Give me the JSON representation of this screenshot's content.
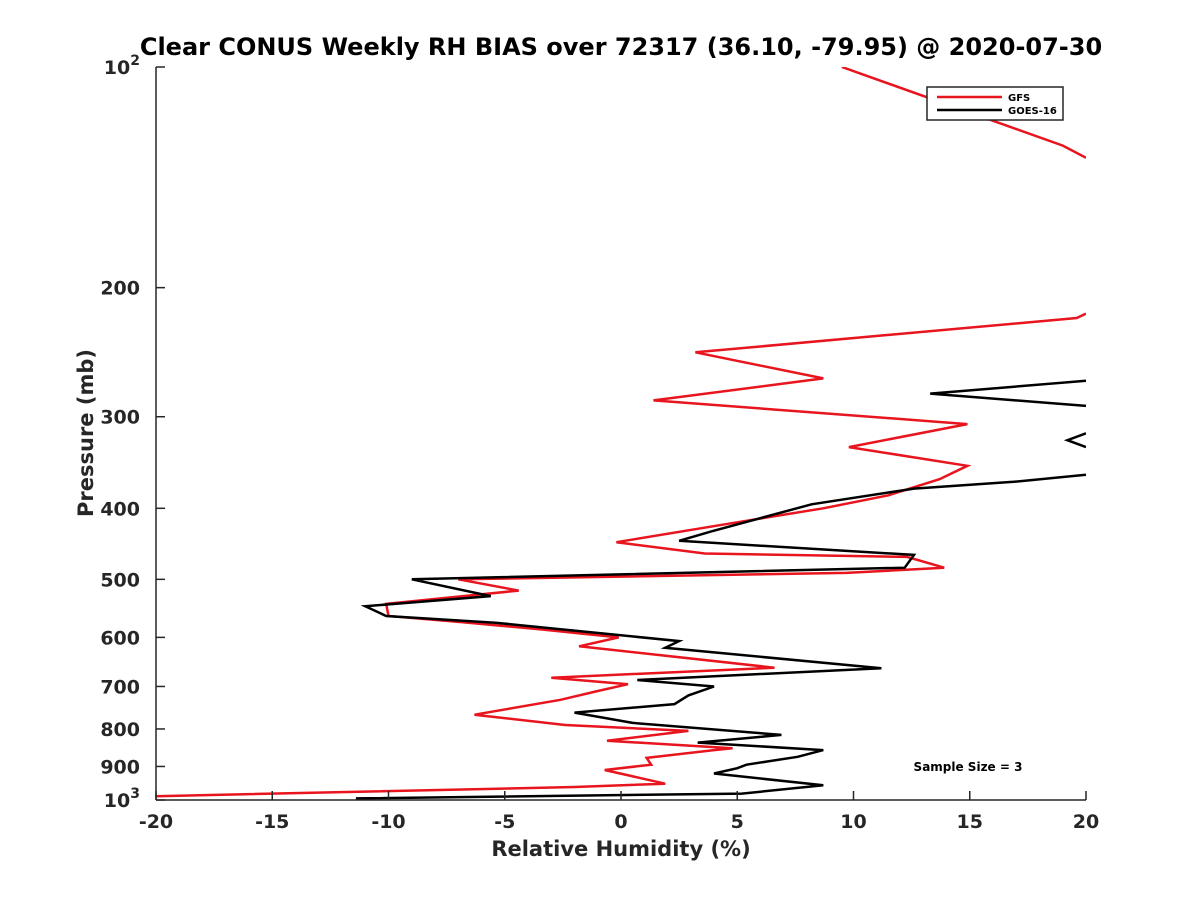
{
  "chart_data": {
    "type": "line",
    "title": "Clear CONUS Weekly RH BIAS over 72317 (36.10, -79.95) @ 2020-07-30",
    "xlabel": "Relative Humidity (%)",
    "ylabel": "Pressure (mb)",
    "xlim": [
      -20,
      20
    ],
    "ylim": [
      100,
      1000
    ],
    "y_scale": "log",
    "y_reversed": true,
    "x_ticks": [
      "-20",
      "-15",
      "-10",
      "-5",
      "0",
      "5",
      "10",
      "15",
      "20"
    ],
    "y_ticks": [
      {
        "value": 100,
        "base": "10",
        "exp": "2"
      },
      {
        "value": 200,
        "label": "200"
      },
      {
        "value": 300,
        "label": "300"
      },
      {
        "value": 400,
        "label": "400"
      },
      {
        "value": 500,
        "label": "500"
      },
      {
        "value": 600,
        "label": "600"
      },
      {
        "value": 700,
        "label": "700"
      },
      {
        "value": 800,
        "label": "800"
      },
      {
        "value": 900,
        "label": "900"
      },
      {
        "value": 1000,
        "base": "10",
        "exp": "3"
      }
    ],
    "legend_position": "top-right",
    "annotation": "Sample Size = 3",
    "series": [
      {
        "name": "GFS",
        "color": "#e8141e",
        "points": [
          [
            9.5,
            100
          ],
          [
            19.0,
            128
          ],
          [
            20.0,
            133
          ],
          [
            null,
            null
          ],
          [
            20.0,
            217
          ],
          [
            19.6,
            220
          ],
          [
            3.2,
            245
          ],
          [
            8.7,
            266
          ],
          [
            1.4,
            285
          ],
          [
            14.9,
            307
          ],
          [
            9.8,
            330
          ],
          [
            14.9,
            350
          ],
          [
            13.7,
            365
          ],
          [
            11.5,
            384
          ],
          [
            8.7,
            400
          ],
          [
            4.6,
            420
          ],
          [
            -0.2,
            445
          ],
          [
            3.6,
            461
          ],
          [
            12.3,
            466
          ],
          [
            13.9,
            482
          ],
          [
            9.7,
            490
          ],
          [
            -7.0,
            500
          ],
          [
            -4.4,
            518
          ],
          [
            -10.1,
            540
          ],
          [
            -10.0,
            561
          ],
          [
            -6.8,
            572
          ],
          [
            -3.5,
            585
          ],
          [
            -0.1,
            600
          ],
          [
            -1.8,
            617
          ],
          [
            6.6,
            660
          ],
          [
            -3.0,
            681
          ],
          [
            0.3,
            695
          ],
          [
            -1.0,
            710
          ],
          [
            -2.6,
            730
          ],
          [
            -6.3,
            765
          ],
          [
            -2.4,
            790
          ],
          [
            2.9,
            805
          ],
          [
            -0.6,
            830
          ],
          [
            4.8,
            850
          ],
          [
            4.0,
            855
          ],
          [
            1.1,
            876
          ],
          [
            1.3,
            895
          ],
          [
            -0.7,
            910
          ],
          [
            1.9,
            950
          ],
          [
            -2.0,
            960
          ],
          [
            -20.0,
            988
          ]
        ]
      },
      {
        "name": "GOES-16",
        "color": "#000000",
        "points": [
          [
            20.0,
            268
          ],
          [
            13.3,
            279
          ],
          [
            20.0,
            290
          ],
          [
            null,
            null
          ],
          [
            20.0,
            316
          ],
          [
            19.2,
            323
          ],
          [
            20.0,
            330
          ],
          [
            null,
            null
          ],
          [
            20.0,
            360
          ],
          [
            16.9,
            368
          ],
          [
            12.6,
            376
          ],
          [
            8.2,
            395
          ],
          [
            3.9,
            430
          ],
          [
            2.5,
            443
          ],
          [
            12.6,
            463
          ],
          [
            12.2,
            482
          ],
          [
            -9.0,
            500
          ],
          [
            -5.6,
            527
          ],
          [
            -11.0,
            544
          ],
          [
            -10.1,
            561
          ],
          [
            -5.4,
            573
          ],
          [
            2.5,
            607
          ],
          [
            1.9,
            620
          ],
          [
            11.2,
            661
          ],
          [
            0.7,
            686
          ],
          [
            4.0,
            700
          ],
          [
            2.9,
            720
          ],
          [
            2.3,
            740
          ],
          [
            -2.0,
            760
          ],
          [
            0.5,
            785
          ],
          [
            6.9,
            815
          ],
          [
            3.3,
            835
          ],
          [
            8.7,
            855
          ],
          [
            7.6,
            873
          ],
          [
            5.4,
            895
          ],
          [
            5.0,
            905
          ],
          [
            4.0,
            920
          ],
          [
            8.7,
            955
          ],
          [
            5.2,
            980
          ],
          [
            -11.4,
            995
          ]
        ]
      }
    ]
  }
}
